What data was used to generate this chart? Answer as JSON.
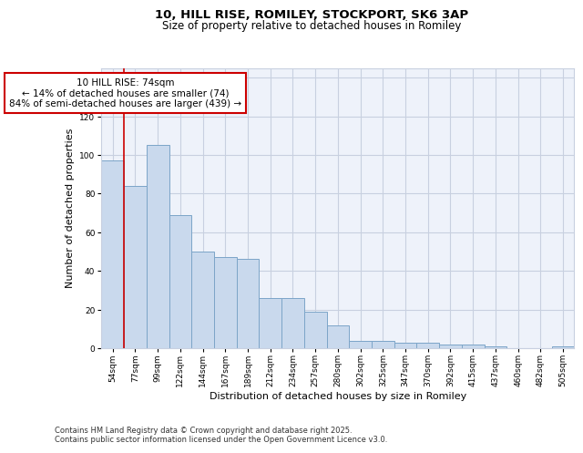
{
  "title_line1": "10, HILL RISE, ROMILEY, STOCKPORT, SK6 3AP",
  "title_line2": "Size of property relative to detached houses in Romiley",
  "xlabel": "Distribution of detached houses by size in Romiley",
  "ylabel": "Number of detached properties",
  "categories": [
    "54sqm",
    "77sqm",
    "99sqm",
    "122sqm",
    "144sqm",
    "167sqm",
    "189sqm",
    "212sqm",
    "234sqm",
    "257sqm",
    "280sqm",
    "302sqm",
    "325sqm",
    "347sqm",
    "370sqm",
    "392sqm",
    "415sqm",
    "437sqm",
    "460sqm",
    "482sqm",
    "505sqm"
  ],
  "values": [
    97,
    84,
    105,
    69,
    50,
    47,
    46,
    26,
    26,
    19,
    12,
    4,
    4,
    3,
    3,
    2,
    2,
    1,
    0,
    0,
    1
  ],
  "bar_color": "#c9d9ed",
  "bar_edge_color": "#7ca5c8",
  "highlight_line_color": "#cc0000",
  "annotation_text": "10 HILL RISE: 74sqm\n← 14% of detached houses are smaller (74)\n84% of semi-detached houses are larger (439) →",
  "annotation_box_color": "#ffffff",
  "annotation_box_edge_color": "#cc0000",
  "ylim": [
    0,
    145
  ],
  "yticks": [
    0,
    20,
    40,
    60,
    80,
    100,
    120,
    140
  ],
  "grid_color": "#c8d0e0",
  "background_color": "#eef2fa",
  "footer_text": "Contains HM Land Registry data © Crown copyright and database right 2025.\nContains public sector information licensed under the Open Government Licence v3.0.",
  "title_fontsize": 9.5,
  "subtitle_fontsize": 8.5,
  "axis_label_fontsize": 8,
  "tick_fontsize": 6.5,
  "annotation_fontsize": 7.5,
  "footer_fontsize": 6.0
}
